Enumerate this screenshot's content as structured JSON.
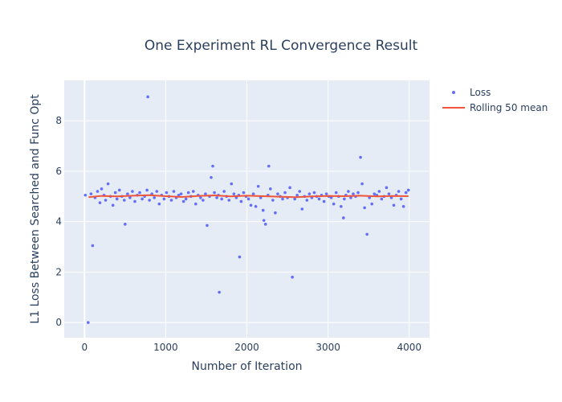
{
  "chart_data": {
    "type": "scatter",
    "title": "One Experiment RL Convergence Result",
    "xlabel": "Number of Iteration",
    "ylabel": "L1 Loss Between Searched and Func Opt",
    "xlim": [
      -250,
      4250
    ],
    "ylim": [
      -0.6,
      9.6
    ],
    "x_ticks": [
      0,
      1000,
      2000,
      3000,
      4000
    ],
    "y_ticks": [
      0,
      2,
      4,
      6,
      8
    ],
    "grid": true,
    "legend_position": "top-right",
    "colors": {
      "background": "#e5ecf6",
      "grid": "#ffffff",
      "loss": "#636efa",
      "rolling": "#ef553b",
      "text": "#2a3f5f"
    },
    "series": [
      {
        "name": "Loss",
        "mode": "markers",
        "x": [
          10,
          45,
          80,
          100,
          130,
          160,
          190,
          210,
          240,
          260,
          290,
          320,
          350,
          380,
          400,
          430,
          460,
          490,
          500,
          530,
          560,
          590,
          620,
          650,
          680,
          710,
          740,
          770,
          780,
          800,
          830,
          860,
          890,
          920,
          950,
          980,
          1010,
          1040,
          1070,
          1100,
          1130,
          1160,
          1190,
          1220,
          1250,
          1280,
          1310,
          1340,
          1370,
          1400,
          1430,
          1460,
          1490,
          1510,
          1540,
          1560,
          1580,
          1600,
          1630,
          1650,
          1660,
          1690,
          1720,
          1750,
          1780,
          1810,
          1840,
          1870,
          1900,
          1910,
          1930,
          1960,
          1990,
          2020,
          2050,
          2080,
          2110,
          2140,
          2170,
          2200,
          2210,
          2230,
          2260,
          2270,
          2290,
          2320,
          2350,
          2380,
          2410,
          2440,
          2470,
          2500,
          2530,
          2560,
          2590,
          2620,
          2650,
          2680,
          2710,
          2740,
          2770,
          2800,
          2830,
          2860,
          2890,
          2920,
          2950,
          2980,
          3010,
          3040,
          3070,
          3100,
          3130,
          3160,
          3190,
          3200,
          3220,
          3250,
          3280,
          3310,
          3340,
          3370,
          3400,
          3420,
          3450,
          3480,
          3510,
          3540,
          3570,
          3600,
          3630,
          3660,
          3690,
          3720,
          3750,
          3780,
          3810,
          3840,
          3870,
          3900,
          3930,
          3960,
          3990
        ],
        "y": [
          5.05,
          0.0,
          5.1,
          3.05,
          4.95,
          5.2,
          4.75,
          5.3,
          5.05,
          4.85,
          5.5,
          5.0,
          4.65,
          5.15,
          4.9,
          5.25,
          5.0,
          4.85,
          3.9,
          5.1,
          4.95,
          5.2,
          4.8,
          5.05,
          5.15,
          4.9,
          5.0,
          5.25,
          8.95,
          4.85,
          5.1,
          4.95,
          5.2,
          4.7,
          5.05,
          4.9,
          5.15,
          5.0,
          4.85,
          5.2,
          4.95,
          5.05,
          5.1,
          4.8,
          4.9,
          5.15,
          5.0,
          5.2,
          4.7,
          5.05,
          4.95,
          4.85,
          5.1,
          3.85,
          5.0,
          5.75,
          6.2,
          5.15,
          4.95,
          5.05,
          1.2,
          4.9,
          5.2,
          5.0,
          4.85,
          5.5,
          5.1,
          4.95,
          5.05,
          2.6,
          4.8,
          5.15,
          5.0,
          4.9,
          4.65,
          5.1,
          4.6,
          5.4,
          4.95,
          4.45,
          4.05,
          3.9,
          5.05,
          6.2,
          5.3,
          4.85,
          4.35,
          5.1,
          5.0,
          4.9,
          5.15,
          4.95,
          5.35,
          1.8,
          4.9,
          5.05,
          5.2,
          4.5,
          5.0,
          4.85,
          5.1,
          4.95,
          5.15,
          5.0,
          4.9,
          5.05,
          4.8,
          5.1,
          5.0,
          4.95,
          4.7,
          5.15,
          5.0,
          4.6,
          4.15,
          4.9,
          5.05,
          5.2,
          4.95,
          5.1,
          5.0,
          5.15,
          6.55,
          5.5,
          4.55,
          3.5,
          4.95,
          4.7,
          5.1,
          5.05,
          5.2,
          4.9,
          5.0,
          5.35,
          5.1,
          4.95,
          4.65,
          5.05,
          5.2,
          4.9,
          4.6,
          5.15,
          5.25
        ]
      },
      {
        "name": "Rolling 50 mean",
        "mode": "lines",
        "x": [
          50,
          200,
          400,
          600,
          800,
          1000,
          1200,
          1400,
          1600,
          1800,
          2000,
          2200,
          2400,
          2600,
          2800,
          3000,
          3200,
          3400,
          3600,
          3800,
          3990
        ],
        "y": [
          4.97,
          5.02,
          5.0,
          5.03,
          5.05,
          5.01,
          4.98,
          5.02,
          5.04,
          5.0,
          5.03,
          5.01,
          4.99,
          4.97,
          5.0,
          5.02,
          5.01,
          5.03,
          5.0,
          5.02,
          5.01
        ]
      }
    ]
  }
}
